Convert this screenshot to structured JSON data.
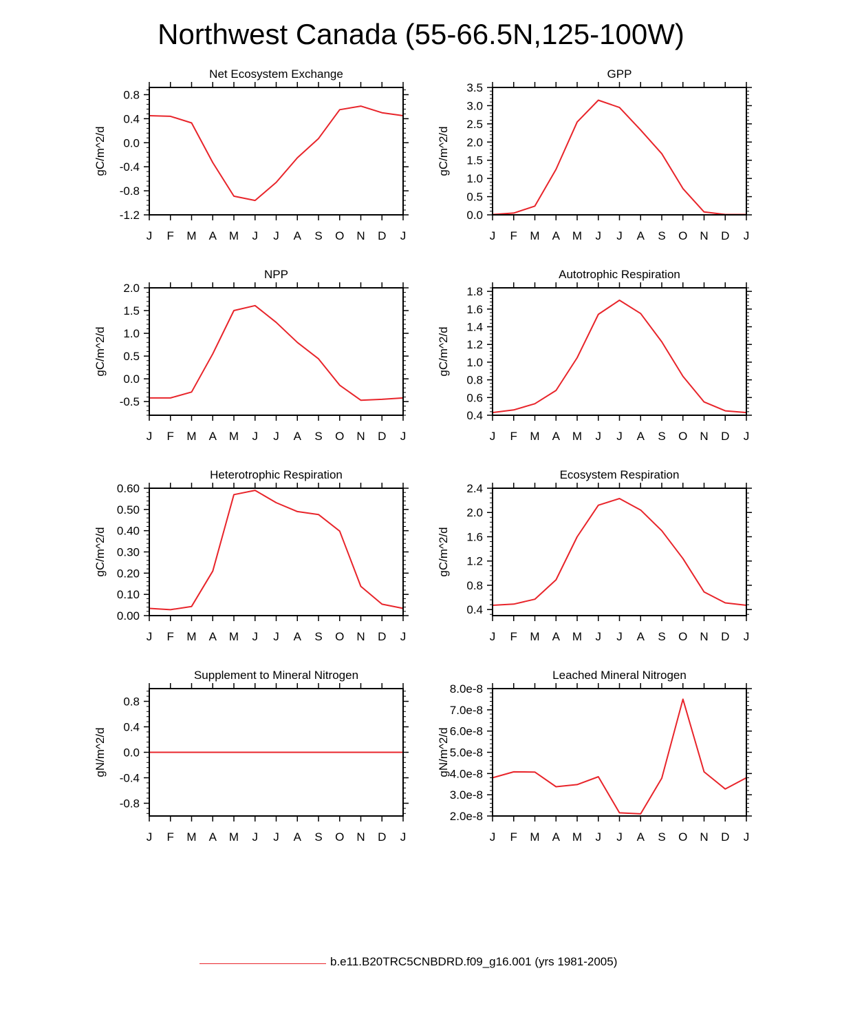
{
  "figure": {
    "title": "Northwest Canada (55-66.5N,125-100W)",
    "line_color": "#e8242a",
    "legend_label": "b.e11.B20TRC5CNBDRD.f09_g16.001 (yrs 1981-2005)"
  },
  "chart_data": [
    {
      "type": "line",
      "title": "Net Ecosystem Exchange",
      "ylabel": "gC/m^2/d",
      "categories": [
        "J",
        "F",
        "M",
        "A",
        "M",
        "J",
        "J",
        "A",
        "S",
        "O",
        "N",
        "D",
        "J"
      ],
      "ylim": [
        -1.2,
        0.92
      ],
      "yticks": [
        -1.2,
        -0.8,
        -0.4,
        0.0,
        0.4,
        0.8
      ],
      "ytick_labels": [
        "-1.2",
        "-0.8",
        "-0.4",
        "0.0",
        "0.4",
        "0.8"
      ],
      "series": [
        {
          "values": [
            0.45,
            0.44,
            0.33,
            -0.33,
            -0.89,
            -0.96,
            -0.66,
            -0.25,
            0.07,
            0.55,
            0.61,
            0.5,
            0.45
          ]
        }
      ]
    },
    {
      "type": "line",
      "title": "GPP",
      "ylabel": "gC/m^2/d",
      "categories": [
        "J",
        "F",
        "M",
        "A",
        "M",
        "J",
        "J",
        "A",
        "S",
        "O",
        "N",
        "D",
        "J"
      ],
      "ylim": [
        0.0,
        3.5
      ],
      "yticks": [
        0.0,
        0.5,
        1.0,
        1.5,
        2.0,
        2.5,
        3.0,
        3.5
      ],
      "ytick_labels": [
        "0.0",
        "0.5",
        "1.0",
        "1.5",
        "2.0",
        "2.5",
        "3.0",
        "3.5"
      ],
      "series": [
        {
          "values": [
            0.01,
            0.05,
            0.24,
            1.25,
            2.55,
            3.15,
            2.95,
            2.33,
            1.68,
            0.72,
            0.08,
            0.01,
            0.01
          ]
        }
      ]
    },
    {
      "type": "line",
      "title": "NPP",
      "ylabel": "gC/m^2/d",
      "categories": [
        "J",
        "F",
        "M",
        "A",
        "M",
        "J",
        "J",
        "A",
        "S",
        "O",
        "N",
        "D",
        "J"
      ],
      "ylim": [
        -0.8,
        2.0
      ],
      "yticks": [
        -0.5,
        0.0,
        0.5,
        1.0,
        1.5,
        2.0
      ],
      "ytick_labels": [
        "-0.5",
        "0.0",
        "0.5",
        "1.0",
        "1.5",
        "2.0"
      ],
      "series": [
        {
          "values": [
            -0.42,
            -0.42,
            -0.29,
            0.55,
            1.5,
            1.61,
            1.24,
            0.8,
            0.44,
            -0.14,
            -0.47,
            -0.45,
            -0.42
          ]
        }
      ]
    },
    {
      "type": "line",
      "title": "Autotrophic Respiration",
      "ylabel": "gC/m^2/d",
      "categories": [
        "J",
        "F",
        "M",
        "A",
        "M",
        "J",
        "J",
        "A",
        "S",
        "O",
        "N",
        "D",
        "J"
      ],
      "ylim": [
        0.4,
        1.84
      ],
      "yticks": [
        0.4,
        0.6,
        0.8,
        1.0,
        1.2,
        1.4,
        1.6,
        1.8
      ],
      "ytick_labels": [
        "0.4",
        "0.6",
        "0.8",
        "1.0",
        "1.2",
        "1.4",
        "1.6",
        "1.8"
      ],
      "series": [
        {
          "values": [
            0.43,
            0.46,
            0.53,
            0.68,
            1.05,
            1.54,
            1.7,
            1.55,
            1.23,
            0.84,
            0.55,
            0.45,
            0.43
          ]
        }
      ]
    },
    {
      "type": "line",
      "title": "Heterotrophic Respiration",
      "ylabel": "gC/m^2/d",
      "categories": [
        "J",
        "F",
        "M",
        "A",
        "M",
        "J",
        "J",
        "A",
        "S",
        "O",
        "N",
        "D",
        "J"
      ],
      "ylim": [
        0.0,
        0.6
      ],
      "yticks": [
        0.0,
        0.1,
        0.2,
        0.3,
        0.4,
        0.5,
        0.6
      ],
      "ytick_labels": [
        "0.00",
        "0.10",
        "0.20",
        "0.30",
        "0.40",
        "0.50",
        "0.60"
      ],
      "series": [
        {
          "values": [
            0.034,
            0.028,
            0.043,
            0.21,
            0.57,
            0.59,
            0.532,
            0.49,
            0.476,
            0.398,
            0.138,
            0.054,
            0.034
          ]
        }
      ]
    },
    {
      "type": "line",
      "title": "Ecosystem Respiration",
      "ylabel": "gC/m^2/d",
      "categories": [
        "J",
        "F",
        "M",
        "A",
        "M",
        "J",
        "J",
        "A",
        "S",
        "O",
        "N",
        "D",
        "J"
      ],
      "ylim": [
        0.3,
        2.4
      ],
      "yticks": [
        0.4,
        0.8,
        1.2,
        1.6,
        2.0,
        2.4
      ],
      "ytick_labels": [
        "0.4",
        "0.8",
        "1.2",
        "1.6",
        "2.0",
        "2.4"
      ],
      "series": [
        {
          "values": [
            0.47,
            0.49,
            0.57,
            0.89,
            1.6,
            2.12,
            2.23,
            2.04,
            1.7,
            1.24,
            0.69,
            0.51,
            0.47
          ]
        }
      ]
    },
    {
      "type": "line",
      "title": "Supplement to Mineral Nitrogen",
      "ylabel": "gN/m^2/d",
      "categories": [
        "J",
        "F",
        "M",
        "A",
        "M",
        "J",
        "J",
        "A",
        "S",
        "O",
        "N",
        "D",
        "J"
      ],
      "ylim": [
        -1.0,
        1.0
      ],
      "yticks": [
        -0.8,
        -0.4,
        0.0,
        0.4,
        0.8
      ],
      "ytick_labels": [
        "-0.8",
        "-0.4",
        "0.0",
        "0.4",
        "0.8"
      ],
      "series": [
        {
          "values": [
            0,
            0,
            0,
            0,
            0,
            0,
            0,
            0,
            0,
            0,
            0,
            0,
            0
          ]
        }
      ]
    },
    {
      "type": "line",
      "title": "Leached Mineral Nitrogen",
      "ylabel": "gN/m^2/d",
      "categories": [
        "J",
        "F",
        "M",
        "A",
        "M",
        "J",
        "J",
        "A",
        "S",
        "O",
        "N",
        "D",
        "J"
      ],
      "ylim": [
        2e-08,
        8e-08
      ],
      "yticks": [
        2e-08,
        3e-08,
        4e-08,
        5e-08,
        6e-08,
        7e-08,
        8e-08
      ],
      "ytick_labels": [
        "2.0e-8",
        "3.0e-8",
        "4.0e-8",
        "5.0e-8",
        "6.0e-8",
        "7.0e-8",
        "8.0e-8"
      ],
      "series": [
        {
          "values": [
            3.8e-08,
            4.08e-08,
            4.07e-08,
            3.38e-08,
            3.48e-08,
            3.85e-08,
            2.15e-08,
            2.1e-08,
            3.78e-08,
            7.5e-08,
            4.08e-08,
            3.27e-08,
            3.8e-08
          ]
        }
      ]
    }
  ]
}
